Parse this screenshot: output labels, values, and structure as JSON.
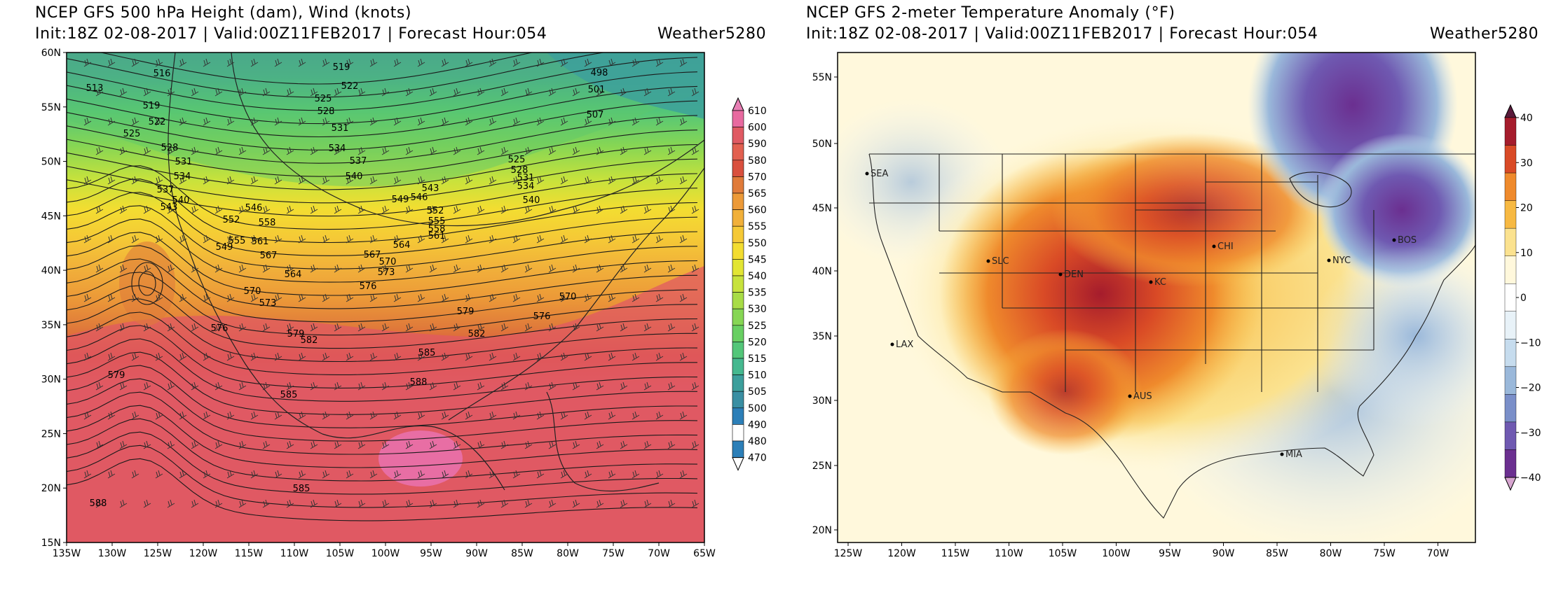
{
  "left_panel": {
    "title_line1": "NCEP GFS 500 hPa Height (dam), Wind (knots)",
    "title_line2": "Init:18Z 02-08-2017 | Valid:00Z11FEB2017 | Forecast Hour:054",
    "brand": "Weather5280",
    "lat_labels": [
      "60N",
      "55N",
      "50N",
      "45N",
      "40N",
      "35N",
      "30N",
      "25N",
      "20N",
      "15N"
    ],
    "lon_labels": [
      "135W",
      "130W",
      "125W",
      "120W",
      "115W",
      "110W",
      "105W",
      "100W",
      "95W",
      "90W",
      "85W",
      "80W",
      "75W",
      "70W",
      "65W"
    ],
    "colorbar_labels": [
      "610",
      "600",
      "590",
      "580",
      "570",
      "565",
      "560",
      "555",
      "550",
      "545",
      "540",
      "535",
      "530",
      "525",
      "520",
      "515",
      "510",
      "505",
      "500",
      "490",
      "480",
      "470"
    ],
    "contour_labels": [
      "516",
      "513",
      "519",
      "522",
      "525",
      "528",
      "531",
      "534",
      "537",
      "540",
      "543",
      "546",
      "549",
      "552",
      "555",
      "558",
      "561",
      "564",
      "567",
      "570",
      "573",
      "576",
      "579",
      "582",
      "585",
      "588",
      "585",
      "588",
      "498",
      "501",
      "507",
      "519",
      "522",
      "525",
      "528",
      "531",
      "534",
      "537",
      "540",
      "525",
      "528",
      "531",
      "534",
      "540",
      "543",
      "546",
      "549",
      "552",
      "555",
      "558",
      "561",
      "564",
      "567",
      "570",
      "573",
      "576",
      "579",
      "582",
      "585",
      "570",
      "576",
      "579"
    ]
  },
  "right_panel": {
    "title_line1": "NCEP GFS 2-meter Temperature Anomaly (°F)",
    "title_line2": "Init:18Z 02-08-2017 | Valid:00Z11FEB2017 | Forecast Hour:054",
    "brand": "Weather5280",
    "lat_labels": [
      "55N",
      "50N",
      "45N",
      "40N",
      "35N",
      "30N",
      "25N",
      "20N"
    ],
    "lon_labels": [
      "125W",
      "120W",
      "115W",
      "110W",
      "105W",
      "100W",
      "95W",
      "90W",
      "85W",
      "80W",
      "75W",
      "70W"
    ],
    "colorbar_labels": [
      "40",
      "30",
      "20",
      "10",
      "0",
      "−10",
      "−20",
      "−30",
      "−40"
    ],
    "cities": [
      "SEA",
      "SLC",
      "DEN",
      "KC",
      "CHI",
      "NYC",
      "BOS",
      "LAX",
      "AUS",
      "MIA"
    ]
  },
  "colors": {
    "height_scale": [
      "#e87fb5",
      "#e86aa0",
      "#e05a63",
      "#e26050",
      "#d9503e",
      "#e07b3a",
      "#ec9a38",
      "#f1b03a",
      "#f5c936",
      "#f3dd31",
      "#e2e534",
      "#c7e23c",
      "#a8dc46",
      "#86d654",
      "#68cf62",
      "#53c679",
      "#45b88f",
      "#3c9f9c",
      "#3a8fa3",
      "#2c7fb8",
      "#ffffff"
    ],
    "anomaly_scale": [
      "#5a1a3b",
      "#a51c2c",
      "#d94a26",
      "#ef8a2c",
      "#f7b942",
      "#fbe28f",
      "#fff8dc",
      "#ffffff",
      "#e8f2f8",
      "#c6dcee",
      "#9ab8da",
      "#7a8fc9",
      "#6f59b1",
      "#6b2f90",
      "#d7a5d0"
    ]
  }
}
